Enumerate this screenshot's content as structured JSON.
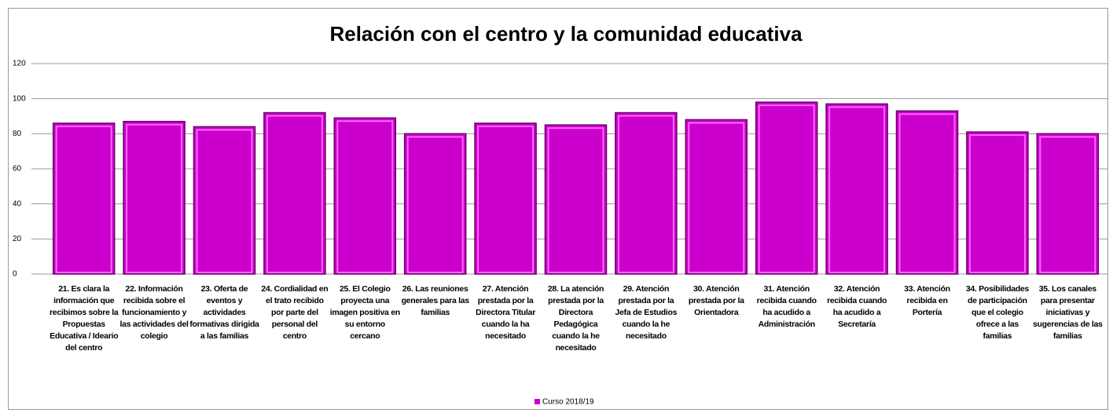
{
  "chart_data": {
    "type": "bar",
    "title": "Relación con el centro y la comunidad educativa",
    "categories": [
      "21. Es clara la información que recibimos sobre la Propuestas Educativa / Ideario del centro",
      "22. Información recibida sobre el funcionamiento y las actividades del colegio",
      "23. Oferta de eventos y actividades formativas dirigida a las familias",
      "24. Cordialidad en el trato recibido por parte del personal del centro",
      "25. El Colegio proyecta una imagen positiva en su entorno cercano",
      "26. Las reuniones generales para las familias",
      "27. Atención prestada por la Directora Titular cuando la ha necesitado",
      "28. La atención prestada por la Directora Pedagógica cuando la he necesitado",
      "29. Atención prestada por la Jefa de Estudios cuando la he necesitado",
      "30. Atención prestada por la Orientadora",
      "31. Atención recibida cuando ha acudido a Administración",
      "32. Atención recibida cuando ha acudido a Secretaría",
      "33. Atención recibida en Portería",
      "34. Posibilidades de participación que el colegio ofrece a las familias",
      "35. Los canales para presentar iniciativas y sugerencias de las familias"
    ],
    "series": [
      {
        "name": "Curso 2018/19",
        "color": "#cc00cc",
        "values": [
          86,
          87,
          84,
          92,
          89,
          80,
          86,
          85,
          92,
          88,
          98,
          97,
          93,
          81,
          80
        ]
      }
    ],
    "ylim": [
      0,
      120
    ],
    "yticks": [
      0,
      20,
      40,
      60,
      80,
      100,
      120
    ],
    "grid": true,
    "legend": "bottom"
  }
}
